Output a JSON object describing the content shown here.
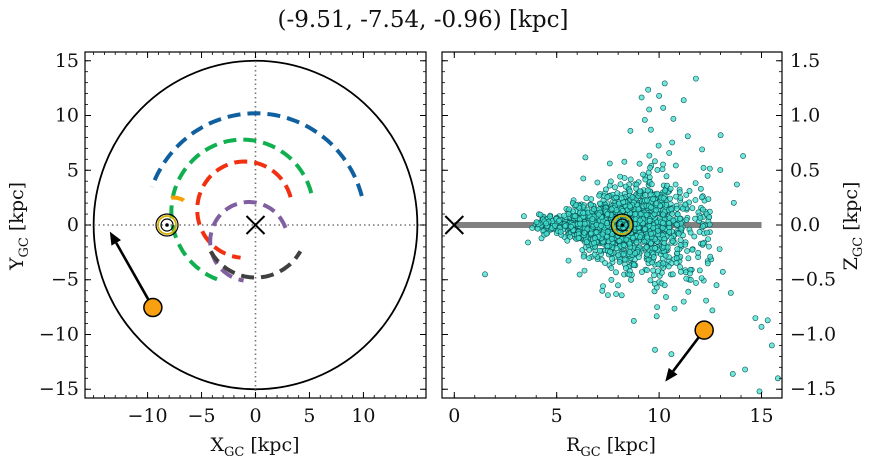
{
  "figure": {
    "title": "(-9.51, -7.54, -0.96) [kpc]"
  },
  "chart_data": [
    {
      "type": "scatter",
      "panel": "left",
      "xlabel": "X",
      "xlabel_sub": "GC",
      "xlabel_unit": " [kpc]",
      "ylabel": "Y",
      "ylabel_sub": "GC",
      "ylabel_unit": " [kpc]",
      "xlim": [
        -15.8,
        15.8
      ],
      "ylim": [
        -15.8,
        15.8
      ],
      "xticks": [
        -10,
        -5,
        0,
        5,
        10
      ],
      "yticks": [
        -15,
        -10,
        -5,
        0,
        5,
        10,
        15
      ],
      "grid": false,
      "galaxy_radius": 15,
      "reference_lines": {
        "x": 0,
        "y": 0,
        "style": "dotted",
        "color": "#777777"
      },
      "galactic_center": [
        0,
        0
      ],
      "sun_position": [
        -8.2,
        0
      ],
      "object_position": [
        -9.51,
        -7.54
      ],
      "object_arrow_tip": [
        -13.5,
        -0.6
      ],
      "arm_arcs": [
        {
          "color": "#1060a0",
          "center": [
            0,
            0
          ],
          "radius": 10.2,
          "angle_start_deg": 15,
          "angle_end_deg": 160
        },
        {
          "color": "#10b050",
          "center": [
            -1.2,
            1.2
          ],
          "radius": 6.6,
          "angle_start_deg": 15,
          "angle_end_deg": 253
        },
        {
          "color": "#f03010",
          "center": [
            -1.0,
            1.4
          ],
          "radius": 4.4,
          "angle_start_deg": 15,
          "angle_end_deg": 265
        },
        {
          "color": "#f8a000",
          "center": [
            -7.6,
            0.6
          ],
          "radius": 1.9,
          "angle_start_deg": 60,
          "angle_end_deg": 115
        },
        {
          "color": "#7f5f9f",
          "center": [
            -0.6,
            -1.5
          ],
          "radius": 3.6,
          "angle_start_deg": 20,
          "angle_end_deg": 262
        },
        {
          "color": "#404040",
          "center": [
            0,
            0
          ],
          "radius": 4.8,
          "angle_start_deg": 210,
          "angle_end_deg": 330
        }
      ]
    },
    {
      "type": "scatter",
      "panel": "right",
      "xlabel": "R",
      "xlabel_sub": "GC",
      "xlabel_unit": " [kpc]",
      "ylabel": "Z",
      "ylabel_sub": "GC",
      "ylabel_unit": " [kpc]",
      "xlim": [
        -0.6,
        16
      ],
      "ylim": [
        -1.58,
        1.58
      ],
      "xticks": [
        0,
        5,
        10,
        15
      ],
      "yticks": [
        -1.5,
        -1.0,
        -0.5,
        0.0,
        0.5,
        1.0,
        1.5
      ],
      "ytick_labels": [
        "−1.5",
        "−1.0",
        "−0.5",
        "0.0",
        "0.5",
        "1.0",
        "1.5"
      ],
      "grid": false,
      "disk_plane": {
        "x": [
          0,
          15
        ],
        "y": 0,
        "color": "#808080"
      },
      "galactic_center": [
        0,
        0
      ],
      "sun_position": [
        8.2,
        0
      ],
      "object_position": [
        12.2,
        -0.96
      ],
      "object_arrow_tip": [
        10.3,
        -1.43
      ],
      "points_style": {
        "fill": "#40e0d0",
        "edge": "#0a5050",
        "count": 1500
      },
      "points": [
        [
          1.5,
          -0.45
        ],
        [
          3.4,
          0.08
        ],
        [
          3.6,
          -0.16
        ],
        [
          10.0,
          1.18
        ],
        [
          11.2,
          1.14
        ],
        [
          8.6,
          0.86
        ],
        [
          10.2,
          1.07
        ],
        [
          14.7,
          -0.85
        ],
        [
          15.5,
          -1.1
        ],
        [
          15.0,
          -0.93
        ],
        [
          15.3,
          -0.87
        ],
        [
          9.8,
          -1.14
        ],
        [
          10.6,
          -1.18
        ],
        [
          14.2,
          -1.32
        ],
        [
          13.6,
          -1.36
        ],
        [
          14.9,
          -1.52
        ],
        [
          15.8,
          -1.4
        ],
        [
          7.5,
          -0.64
        ],
        [
          7.9,
          -0.63
        ],
        [
          12.8,
          -0.55
        ],
        [
          9.9,
          -0.75
        ],
        [
          13.5,
          -0.62
        ],
        [
          12.6,
          -0.78
        ],
        [
          11.2,
          -0.7
        ],
        [
          13.8,
          0.37
        ],
        [
          14.1,
          0.63
        ],
        [
          9.6,
          0.87
        ],
        [
          10.7,
          0.97
        ],
        [
          9.3,
          0.96
        ],
        [
          11.4,
          0.81
        ],
        [
          12.1,
          0.69
        ],
        [
          13.0,
          0.82
        ]
      ]
    }
  ]
}
